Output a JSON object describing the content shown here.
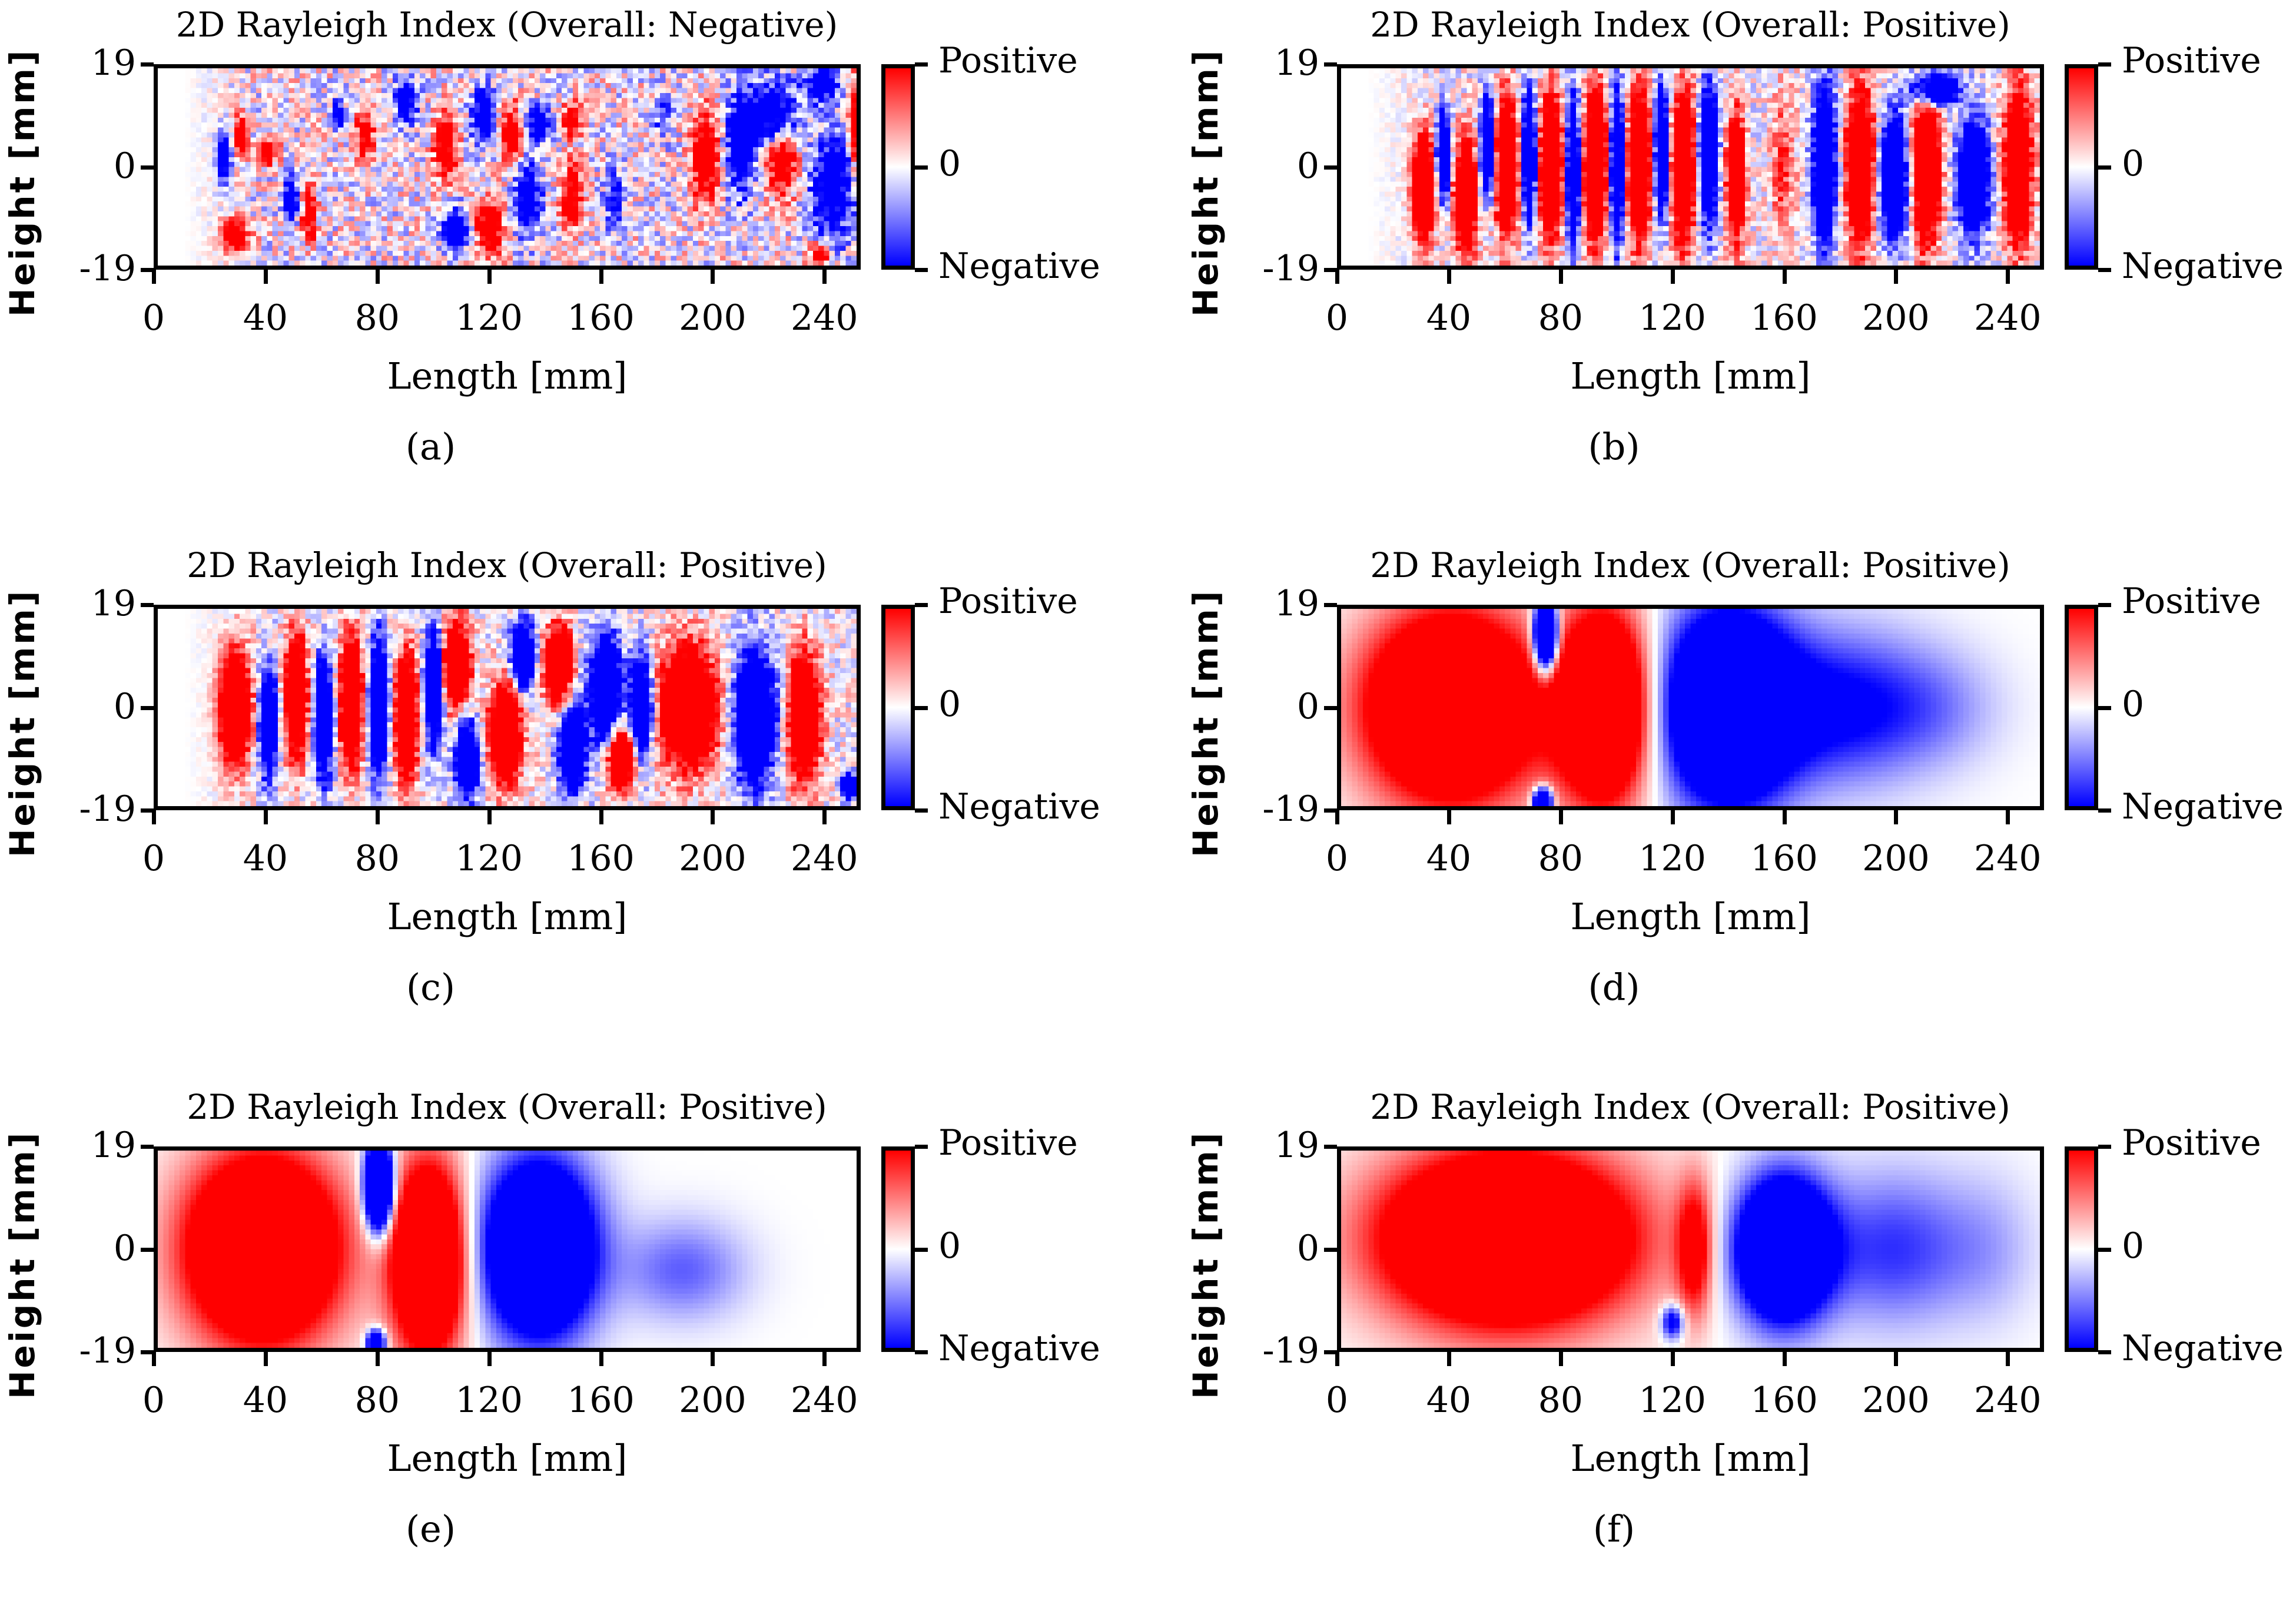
{
  "figure": {
    "colormap": {
      "positive": "#ff0000",
      "zero": "#ffffff",
      "negative": "#0000ff"
    },
    "axis": {
      "xlabel": "Length [mm]",
      "ylabel": "Height [mm]",
      "xticks": [
        "0",
        "40",
        "80",
        "120",
        "160",
        "200",
        "240"
      ],
      "yticks": [
        "19",
        "0",
        "-19"
      ],
      "colorbar_ticks": [
        "Positive",
        "0",
        "Negative"
      ]
    }
  },
  "chart_data": [
    {
      "type": "heatmap",
      "panel": "a",
      "title": "2D Rayleigh Index (Overall: Negative)",
      "caption": "(a)",
      "xlabel": "Length [mm]",
      "ylabel": "Height [mm]",
      "xlim": [
        0,
        253
      ],
      "ylim": [
        -19,
        19
      ],
      "xticks": [
        0,
        40,
        80,
        120,
        160,
        200,
        240
      ],
      "yticks": [
        -19,
        0,
        19
      ],
      "colorbar": {
        "ticks": [
          "Negative",
          "0",
          "Positive"
        ],
        "range": [
          -1,
          1
        ]
      },
      "overall": "Negative",
      "pattern": "noisy",
      "regions": [
        {
          "x": 28,
          "y": -13,
          "rx": 6,
          "ry": 4,
          "v": 1
        },
        {
          "x": 30,
          "y": 6,
          "rx": 3,
          "ry": 5,
          "v": 1
        },
        {
          "x": 24,
          "y": 2,
          "rx": 3,
          "ry": 6,
          "v": -1
        },
        {
          "x": 40,
          "y": 3,
          "rx": 4,
          "ry": 3,
          "v": 1
        },
        {
          "x": 48,
          "y": -6,
          "rx": 3,
          "ry": 6,
          "v": -1
        },
        {
          "x": 55,
          "y": -9,
          "rx": 3,
          "ry": 6,
          "v": 1
        },
        {
          "x": 65,
          "y": 10,
          "rx": 3,
          "ry": 3,
          "v": -1
        },
        {
          "x": 75,
          "y": 6,
          "rx": 4,
          "ry": 6,
          "v": 0.8
        },
        {
          "x": 90,
          "y": 13,
          "rx": 5,
          "ry": 5,
          "v": -1
        },
        {
          "x": 104,
          "y": 4,
          "rx": 5,
          "ry": 8,
          "v": 1
        },
        {
          "x": 108,
          "y": -12,
          "rx": 6,
          "ry": 5,
          "v": -1
        },
        {
          "x": 118,
          "y": 10,
          "rx": 5,
          "ry": 7,
          "v": -1
        },
        {
          "x": 120,
          "y": -12,
          "rx": 6,
          "ry": 7,
          "v": 1
        },
        {
          "x": 128,
          "y": 6,
          "rx": 5,
          "ry": 7,
          "v": 1
        },
        {
          "x": 138,
          "y": 8,
          "rx": 5,
          "ry": 4,
          "v": -1
        },
        {
          "x": 134,
          "y": -6,
          "rx": 6,
          "ry": 9,
          "v": -1
        },
        {
          "x": 150,
          "y": -5,
          "rx": 5,
          "ry": 7,
          "v": 0.9
        },
        {
          "x": 150,
          "y": 9,
          "rx": 4,
          "ry": 4,
          "v": 1
        },
        {
          "x": 165,
          "y": -6,
          "rx": 4,
          "ry": 8,
          "v": -0.6
        },
        {
          "x": 183,
          "y": 10,
          "rx": 4,
          "ry": 6,
          "v": -0.5
        },
        {
          "x": 198,
          "y": 2,
          "rx": 6,
          "ry": 11,
          "v": 1
        },
        {
          "x": 211,
          "y": 4,
          "rx": 6,
          "ry": 12,
          "v": -1
        },
        {
          "x": 222,
          "y": 10,
          "rx": 12,
          "ry": 8,
          "v": -1
        },
        {
          "x": 226,
          "y": 1,
          "rx": 7,
          "ry": 8,
          "v": 1
        },
        {
          "x": 244,
          "y": -4,
          "rx": 9,
          "ry": 13,
          "v": -1
        },
        {
          "x": 240,
          "y": 16,
          "rx": 7,
          "ry": 4,
          "v": -1
        },
        {
          "x": 240,
          "y": -17,
          "rx": 5,
          "ry": 3,
          "v": 0.9
        },
        {
          "x": 252,
          "y": 8,
          "rx": 2,
          "ry": 10,
          "v": 1
        }
      ]
    },
    {
      "type": "heatmap",
      "panel": "b",
      "title": "2D Rayleigh Index (Overall: Positive)",
      "caption": "(b)",
      "xlabel": "Length [mm]",
      "ylabel": "Height [mm]",
      "xlim": [
        0,
        253
      ],
      "ylim": [
        -19,
        19
      ],
      "xticks": [
        0,
        40,
        80,
        120,
        160,
        200,
        240
      ],
      "yticks": [
        -19,
        0,
        19
      ],
      "colorbar": {
        "ticks": [
          "Negative",
          "0",
          "Positive"
        ],
        "range": [
          -1,
          1
        ]
      },
      "overall": "Positive",
      "pattern": "stripes",
      "regions": [
        {
          "x": 30,
          "y": -4,
          "rx": 5,
          "ry": 12,
          "v": 1
        },
        {
          "x": 37,
          "y": 2,
          "rx": 3,
          "ry": 10,
          "v": -1
        },
        {
          "x": 45,
          "y": -6,
          "rx": 5,
          "ry": 13,
          "v": 1
        },
        {
          "x": 53,
          "y": 4,
          "rx": 3,
          "ry": 12,
          "v": -1
        },
        {
          "x": 60,
          "y": 0,
          "rx": 5,
          "ry": 16,
          "v": 1
        },
        {
          "x": 68,
          "y": 2,
          "rx": 3,
          "ry": 15,
          "v": -1
        },
        {
          "x": 76,
          "y": 0,
          "rx": 5,
          "ry": 17,
          "v": 1
        },
        {
          "x": 84,
          "y": -1,
          "rx": 3,
          "ry": 17,
          "v": -1
        },
        {
          "x": 92,
          "y": 0,
          "rx": 5,
          "ry": 18,
          "v": 1
        },
        {
          "x": 100,
          "y": 0,
          "rx": 3,
          "ry": 18,
          "v": -1
        },
        {
          "x": 108,
          "y": 0,
          "rx": 5,
          "ry": 18,
          "v": 1
        },
        {
          "x": 116,
          "y": 3,
          "rx": 3,
          "ry": 15,
          "v": -1
        },
        {
          "x": 124,
          "y": 0,
          "rx": 5,
          "ry": 18,
          "v": 1
        },
        {
          "x": 133,
          "y": 2,
          "rx": 4,
          "ry": 16,
          "v": -1
        },
        {
          "x": 143,
          "y": -2,
          "rx": 4,
          "ry": 15,
          "v": 0.9
        },
        {
          "x": 160,
          "y": 0,
          "rx": 5,
          "ry": 18,
          "v": 0.3
        },
        {
          "x": 175,
          "y": 0,
          "rx": 5,
          "ry": 18,
          "v": -1
        },
        {
          "x": 188,
          "y": 0,
          "rx": 6,
          "ry": 18,
          "v": 1
        },
        {
          "x": 200,
          "y": -2,
          "rx": 6,
          "ry": 14,
          "v": -1
        },
        {
          "x": 212,
          "y": 0,
          "rx": 6,
          "ry": 18,
          "v": 1
        },
        {
          "x": 229,
          "y": -2,
          "rx": 7,
          "ry": 13,
          "v": -1
        },
        {
          "x": 215,
          "y": 15,
          "rx": 10,
          "ry": 4,
          "v": -1
        },
        {
          "x": 245,
          "y": 0,
          "rx": 6,
          "ry": 18,
          "v": 1
        }
      ]
    },
    {
      "type": "heatmap",
      "panel": "c",
      "title": "2D Rayleigh Index (Overall: Positive)",
      "caption": "(c)",
      "xlabel": "Length [mm]",
      "ylabel": "Height [mm]",
      "xlim": [
        0,
        253
      ],
      "ylim": [
        -19,
        19
      ],
      "xticks": [
        0,
        40,
        80,
        120,
        160,
        200,
        240
      ],
      "yticks": [
        -19,
        0,
        19
      ],
      "colorbar": {
        "ticks": [
          "Negative",
          "0",
          "Positive"
        ],
        "range": [
          -1,
          1
        ]
      },
      "overall": "Positive",
      "pattern": "blobby",
      "regions": [
        {
          "x": 28,
          "y": 0,
          "rx": 7,
          "ry": 13,
          "v": 1
        },
        {
          "x": 40,
          "y": -3,
          "rx": 4,
          "ry": 12,
          "v": -1
        },
        {
          "x": 50,
          "y": 2,
          "rx": 5,
          "ry": 14,
          "v": 1
        },
        {
          "x": 60,
          "y": -2,
          "rx": 4,
          "ry": 14,
          "v": -1
        },
        {
          "x": 70,
          "y": 1,
          "rx": 5,
          "ry": 15,
          "v": 1
        },
        {
          "x": 80,
          "y": 0,
          "rx": 4,
          "ry": 16,
          "v": -1
        },
        {
          "x": 90,
          "y": -2,
          "rx": 5,
          "ry": 15,
          "v": 1
        },
        {
          "x": 100,
          "y": 4,
          "rx": 4,
          "ry": 13,
          "v": -1
        },
        {
          "x": 108,
          "y": 8,
          "rx": 6,
          "ry": 10,
          "v": 1
        },
        {
          "x": 112,
          "y": -10,
          "rx": 5,
          "ry": 9,
          "v": -1
        },
        {
          "x": 126,
          "y": -5,
          "rx": 7,
          "ry": 12,
          "v": 1
        },
        {
          "x": 132,
          "y": 10,
          "rx": 5,
          "ry": 8,
          "v": -1
        },
        {
          "x": 145,
          "y": 8,
          "rx": 6,
          "ry": 9,
          "v": 1
        },
        {
          "x": 150,
          "y": -8,
          "rx": 6,
          "ry": 10,
          "v": -1
        },
        {
          "x": 162,
          "y": 4,
          "rx": 7,
          "ry": 12,
          "v": -1
        },
        {
          "x": 168,
          "y": -10,
          "rx": 6,
          "ry": 7,
          "v": 1
        },
        {
          "x": 192,
          "y": 0,
          "rx": 13,
          "ry": 14,
          "v": 1
        },
        {
          "x": 175,
          "y": 0,
          "rx": 5,
          "ry": 12,
          "v": -1
        },
        {
          "x": 216,
          "y": -2,
          "rx": 9,
          "ry": 16,
          "v": -1
        },
        {
          "x": 234,
          "y": -2,
          "rx": 7,
          "ry": 15,
          "v": 1
        },
        {
          "x": 250,
          "y": -15,
          "rx": 3,
          "ry": 3,
          "v": -1
        }
      ]
    },
    {
      "type": "heatmap",
      "panel": "d",
      "title": "2D Rayleigh Index (Overall: Positive)",
      "caption": "(d)",
      "xlabel": "Length [mm]",
      "ylabel": "Height [mm]",
      "xlim": [
        0,
        253
      ],
      "ylim": [
        -19,
        19
      ],
      "xticks": [
        0,
        40,
        80,
        120,
        160,
        200,
        240
      ],
      "yticks": [
        -19,
        0,
        19
      ],
      "colorbar": {
        "ticks": [
          "Negative",
          "0",
          "Positive"
        ],
        "range": [
          -1,
          1
        ]
      },
      "overall": "Positive",
      "pattern": "smooth",
      "regions": [
        {
          "x": 40,
          "y": 0,
          "rx": 38,
          "ry": 22,
          "v": 1.6
        },
        {
          "x": 95,
          "y": 0,
          "rx": 20,
          "ry": 22,
          "v": 1.6
        },
        {
          "x": 74,
          "y": 14,
          "rx": 5,
          "ry": 8,
          "v": -2.2
        },
        {
          "x": 73,
          "y": -18,
          "rx": 4,
          "ry": 3,
          "v": -1.8
        },
        {
          "x": 140,
          "y": 0,
          "rx": 28,
          "ry": 22,
          "v": -1.7
        },
        {
          "x": 180,
          "y": 0,
          "rx": 40,
          "ry": 18,
          "v": -0.6
        },
        {
          "x": 215,
          "y": 0,
          "rx": 30,
          "ry": 14,
          "v": -0.2
        }
      ]
    },
    {
      "type": "heatmap",
      "panel": "e",
      "title": "2D Rayleigh Index (Overall: Positive)",
      "caption": "(e)",
      "xlabel": "Length [mm]",
      "ylabel": "Height [mm]",
      "xlim": [
        0,
        253
      ],
      "ylim": [
        -19,
        19
      ],
      "xticks": [
        0,
        40,
        80,
        120,
        160,
        200,
        240
      ],
      "yticks": [
        -19,
        0,
        19
      ],
      "colorbar": {
        "ticks": [
          "Negative",
          "0",
          "Positive"
        ],
        "range": [
          -1,
          1
        ]
      },
      "overall": "Positive",
      "pattern": "smooth",
      "regions": [
        {
          "x": 38,
          "y": 0,
          "rx": 34,
          "ry": 22,
          "v": 1.6
        },
        {
          "x": 98,
          "y": -2,
          "rx": 16,
          "ry": 22,
          "v": 1.6
        },
        {
          "x": 80,
          "y": 12,
          "rx": 6,
          "ry": 10,
          "v": -2.2
        },
        {
          "x": 79,
          "y": -18,
          "rx": 4,
          "ry": 3,
          "v": -1.4
        },
        {
          "x": 138,
          "y": 0,
          "rx": 24,
          "ry": 20,
          "v": -1.7
        },
        {
          "x": 190,
          "y": -4,
          "rx": 28,
          "ry": 12,
          "v": -0.35
        }
      ]
    },
    {
      "type": "heatmap",
      "panel": "f",
      "title": "2D Rayleigh Index (Overall: Positive)",
      "caption": "(f)",
      "xlabel": "Length [mm]",
      "ylabel": "Height [mm]",
      "xlim": [
        0,
        253
      ],
      "ylim": [
        -19,
        19
      ],
      "xticks": [
        0,
        40,
        80,
        120,
        160,
        200,
        240
      ],
      "yticks": [
        -19,
        0,
        19
      ],
      "colorbar": {
        "ticks": [
          "Negative",
          "0",
          "Positive"
        ],
        "range": [
          -1,
          1
        ]
      },
      "overall": "Positive",
      "pattern": "smooth",
      "regions": [
        {
          "x": 60,
          "y": 2,
          "rx": 55,
          "ry": 20,
          "v": 1.7
        },
        {
          "x": 128,
          "y": 0,
          "rx": 8,
          "ry": 16,
          "v": 0.7
        },
        {
          "x": 120,
          "y": -14,
          "rx": 5,
          "ry": 4,
          "v": -0.8
        },
        {
          "x": 160,
          "y": 0,
          "rx": 20,
          "ry": 16,
          "v": -1.8
        },
        {
          "x": 200,
          "y": 0,
          "rx": 35,
          "ry": 18,
          "v": -0.45
        },
        {
          "x": 235,
          "y": 0,
          "rx": 22,
          "ry": 18,
          "v": -0.15
        }
      ]
    }
  ],
  "panels": [
    {
      "title": "2D Rayleigh Index (Overall: Negative)",
      "caption": "(a)"
    },
    {
      "title": "2D Rayleigh Index (Overall: Positive)",
      "caption": "(b)"
    },
    {
      "title": "2D Rayleigh Index (Overall: Positive)",
      "caption": "(c)"
    },
    {
      "title": "2D Rayleigh Index (Overall: Positive)",
      "caption": "(d)"
    },
    {
      "title": "2D Rayleigh Index (Overall: Positive)",
      "caption": "(e)"
    },
    {
      "title": "2D Rayleigh Index (Overall: Positive)",
      "caption": "(f)"
    }
  ]
}
